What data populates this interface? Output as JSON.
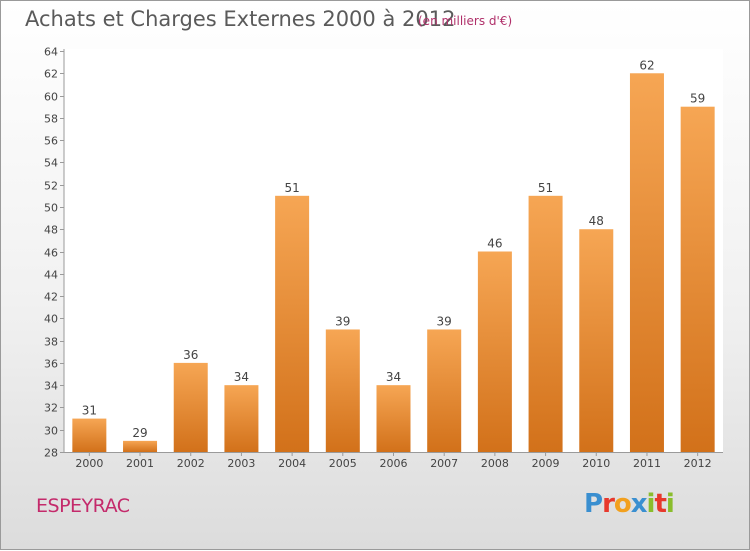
{
  "chart_data": {
    "type": "bar",
    "title": "Achats et Charges Externes 2000 à 2012",
    "subtitle": "(en milliers d'€)",
    "categories": [
      "2000",
      "2001",
      "2002",
      "2003",
      "2004",
      "2005",
      "2006",
      "2007",
      "2008",
      "2009",
      "2010",
      "2011",
      "2012"
    ],
    "values": [
      31,
      29,
      36,
      34,
      51,
      39,
      34,
      39,
      46,
      51,
      48,
      62,
      59
    ],
    "ylim": [
      28,
      64
    ],
    "yticks": [
      28,
      30,
      32,
      34,
      36,
      38,
      40,
      42,
      44,
      46,
      48,
      50,
      52,
      54,
      56,
      58,
      60,
      62,
      64
    ],
    "grid": false,
    "bar_color_top": "#f6a654",
    "bar_color_bottom": "#d2711a"
  },
  "location": "ESPEYRAC",
  "brand": "Proxiti"
}
